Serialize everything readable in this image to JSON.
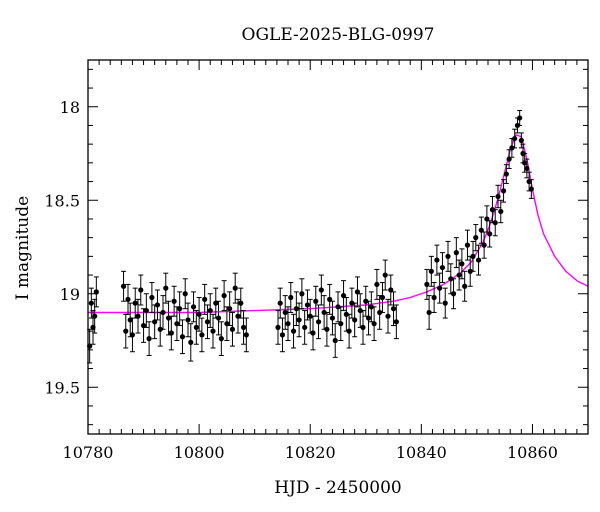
{
  "chart_data": {
    "type": "scatter",
    "title": "OGLE-2025-BLG-0997",
    "xlabel": "HJD - 2450000",
    "ylabel": "I magnitude",
    "xlim": [
      10780,
      10870
    ],
    "ylim": [
      19.75,
      17.75
    ],
    "y_inverted": true,
    "x_ticks": [
      10780,
      10800,
      10820,
      10840,
      10860
    ],
    "y_ticks": [
      18,
      18.5,
      19,
      19.5
    ],
    "x_tick_labels": [
      "10780",
      "10800",
      "10820",
      "10840",
      "10860"
    ],
    "y_tick_labels": [
      "18",
      "18.5",
      "19",
      "19.5"
    ],
    "grid": false,
    "legend": "none",
    "colors": {
      "points": "#000000",
      "model": "#ff00ff"
    },
    "series": [
      {
        "type": "scatter-errorbar",
        "points": [
          {
            "x": 10780.3,
            "y": 19.28,
            "err": 0.09
          },
          {
            "x": 10780.6,
            "y": 19.05,
            "err": 0.08
          },
          {
            "x": 10780.9,
            "y": 19.18,
            "err": 0.09
          },
          {
            "x": 10781.2,
            "y": 19.12,
            "err": 0.09
          },
          {
            "x": 10781.5,
            "y": 18.99,
            "err": 0.08
          },
          {
            "x": 10786.4,
            "y": 18.96,
            "err": 0.08
          },
          {
            "x": 10786.8,
            "y": 19.2,
            "err": 0.09
          },
          {
            "x": 10787.2,
            "y": 19.03,
            "err": 0.08
          },
          {
            "x": 10787.6,
            "y": 19.14,
            "err": 0.09
          },
          {
            "x": 10788.0,
            "y": 19.22,
            "err": 0.09
          },
          {
            "x": 10788.5,
            "y": 19.05,
            "err": 0.08
          },
          {
            "x": 10789.0,
            "y": 19.12,
            "err": 0.09
          },
          {
            "x": 10789.5,
            "y": 18.98,
            "err": 0.08
          },
          {
            "x": 10790.0,
            "y": 19.17,
            "err": 0.09
          },
          {
            "x": 10790.5,
            "y": 19.09,
            "err": 0.09
          },
          {
            "x": 10791.0,
            "y": 19.24,
            "err": 0.09
          },
          {
            "x": 10791.5,
            "y": 19.02,
            "err": 0.08
          },
          {
            "x": 10792.0,
            "y": 19.15,
            "err": 0.09
          },
          {
            "x": 10792.5,
            "y": 19.06,
            "err": 0.08
          },
          {
            "x": 10793.0,
            "y": 19.19,
            "err": 0.09
          },
          {
            "x": 10793.5,
            "y": 19.1,
            "err": 0.09
          },
          {
            "x": 10794.0,
            "y": 18.97,
            "err": 0.08
          },
          {
            "x": 10794.5,
            "y": 19.13,
            "err": 0.09
          },
          {
            "x": 10795.0,
            "y": 19.21,
            "err": 0.09
          },
          {
            "x": 10795.5,
            "y": 19.04,
            "err": 0.08
          },
          {
            "x": 10796.0,
            "y": 19.16,
            "err": 0.09
          },
          {
            "x": 10796.5,
            "y": 19.08,
            "err": 0.09
          },
          {
            "x": 10797.0,
            "y": 19.23,
            "err": 0.09
          },
          {
            "x": 10797.5,
            "y": 19.0,
            "err": 0.08
          },
          {
            "x": 10798.0,
            "y": 19.14,
            "err": 0.09
          },
          {
            "x": 10798.5,
            "y": 19.26,
            "err": 0.1
          },
          {
            "x": 10799.0,
            "y": 19.07,
            "err": 0.08
          },
          {
            "x": 10799.5,
            "y": 19.18,
            "err": 0.09
          },
          {
            "x": 10800.0,
            "y": 19.11,
            "err": 0.09
          },
          {
            "x": 10800.5,
            "y": 19.22,
            "err": 0.09
          },
          {
            "x": 10801.0,
            "y": 19.03,
            "err": 0.08
          },
          {
            "x": 10801.5,
            "y": 19.15,
            "err": 0.09
          },
          {
            "x": 10802.0,
            "y": 19.09,
            "err": 0.09
          },
          {
            "x": 10802.5,
            "y": 19.2,
            "err": 0.09
          },
          {
            "x": 10803.0,
            "y": 19.05,
            "err": 0.08
          },
          {
            "x": 10803.5,
            "y": 19.13,
            "err": 0.09
          },
          {
            "x": 10804.0,
            "y": 19.24,
            "err": 0.09
          },
          {
            "x": 10804.5,
            "y": 19.01,
            "err": 0.08
          },
          {
            "x": 10805.0,
            "y": 19.16,
            "err": 0.09
          },
          {
            "x": 10805.5,
            "y": 19.08,
            "err": 0.09
          },
          {
            "x": 10806.0,
            "y": 19.19,
            "err": 0.09
          },
          {
            "x": 10806.5,
            "y": 18.97,
            "err": 0.08
          },
          {
            "x": 10807.0,
            "y": 19.12,
            "err": 0.09
          },
          {
            "x": 10807.5,
            "y": 19.05,
            "err": 0.08
          },
          {
            "x": 10808.0,
            "y": 19.18,
            "err": 0.09
          },
          {
            "x": 10808.5,
            "y": 19.22,
            "err": 0.09
          },
          {
            "x": 10814.2,
            "y": 19.18,
            "err": 0.09
          },
          {
            "x": 10814.6,
            "y": 19.05,
            "err": 0.08
          },
          {
            "x": 10815.0,
            "y": 19.22,
            "err": 0.09
          },
          {
            "x": 10815.5,
            "y": 19.1,
            "err": 0.09
          },
          {
            "x": 10816.0,
            "y": 19.16,
            "err": 0.09
          },
          {
            "x": 10816.5,
            "y": 19.02,
            "err": 0.08
          },
          {
            "x": 10817.0,
            "y": 19.2,
            "err": 0.09
          },
          {
            "x": 10817.5,
            "y": 19.08,
            "err": 0.09
          },
          {
            "x": 10818.0,
            "y": 19.14,
            "err": 0.09
          },
          {
            "x": 10818.5,
            "y": 19.0,
            "err": 0.08
          },
          {
            "x": 10819.0,
            "y": 19.18,
            "err": 0.09
          },
          {
            "x": 10819.5,
            "y": 19.06,
            "err": 0.08
          },
          {
            "x": 10820.0,
            "y": 19.12,
            "err": 0.09
          },
          {
            "x": 10820.5,
            "y": 19.21,
            "err": 0.09
          },
          {
            "x": 10821.0,
            "y": 19.04,
            "err": 0.08
          },
          {
            "x": 10821.5,
            "y": 19.15,
            "err": 0.09
          },
          {
            "x": 10822.0,
            "y": 18.98,
            "err": 0.08
          },
          {
            "x": 10822.5,
            "y": 19.1,
            "err": 0.09
          },
          {
            "x": 10823.0,
            "y": 19.19,
            "err": 0.09
          },
          {
            "x": 10823.5,
            "y": 19.03,
            "err": 0.08
          },
          {
            "x": 10824.0,
            "y": 19.13,
            "err": 0.09
          },
          {
            "x": 10824.5,
            "y": 19.25,
            "err": 0.09
          },
          {
            "x": 10825.0,
            "y": 19.07,
            "err": 0.08
          },
          {
            "x": 10825.5,
            "y": 19.16,
            "err": 0.09
          },
          {
            "x": 10826.0,
            "y": 19.01,
            "err": 0.08
          },
          {
            "x": 10826.5,
            "y": 19.11,
            "err": 0.09
          },
          {
            "x": 10827.0,
            "y": 19.2,
            "err": 0.09
          },
          {
            "x": 10827.5,
            "y": 19.05,
            "err": 0.08
          },
          {
            "x": 10828.0,
            "y": 19.14,
            "err": 0.09
          },
          {
            "x": 10828.5,
            "y": 18.99,
            "err": 0.08
          },
          {
            "x": 10829.0,
            "y": 19.09,
            "err": 0.09
          },
          {
            "x": 10829.5,
            "y": 19.18,
            "err": 0.09
          },
          {
            "x": 10830.0,
            "y": 19.04,
            "err": 0.08
          },
          {
            "x": 10830.5,
            "y": 19.13,
            "err": 0.09
          },
          {
            "x": 10831.0,
            "y": 19.07,
            "err": 0.08
          },
          {
            "x": 10831.5,
            "y": 19.16,
            "err": 0.09
          },
          {
            "x": 10832.0,
            "y": 18.95,
            "err": 0.08
          },
          {
            "x": 10832.5,
            "y": 19.1,
            "err": 0.09
          },
          {
            "x": 10833.0,
            "y": 19.02,
            "err": 0.08
          },
          {
            "x": 10833.5,
            "y": 18.9,
            "err": 0.08
          },
          {
            "x": 10834.0,
            "y": 19.12,
            "err": 0.09
          },
          {
            "x": 10834.5,
            "y": 18.98,
            "err": 0.08
          },
          {
            "x": 10835.0,
            "y": 19.08,
            "err": 0.09
          },
          {
            "x": 10835.5,
            "y": 19.15,
            "err": 0.09
          },
          {
            "x": 10841.0,
            "y": 18.95,
            "err": 0.08
          },
          {
            "x": 10841.4,
            "y": 19.1,
            "err": 0.09
          },
          {
            "x": 10841.8,
            "y": 18.88,
            "err": 0.08
          },
          {
            "x": 10842.3,
            "y": 19.02,
            "err": 0.08
          },
          {
            "x": 10842.8,
            "y": 18.82,
            "err": 0.08
          },
          {
            "x": 10843.3,
            "y": 18.97,
            "err": 0.08
          },
          {
            "x": 10843.8,
            "y": 18.86,
            "err": 0.08
          },
          {
            "x": 10844.3,
            "y": 19.05,
            "err": 0.08
          },
          {
            "x": 10844.8,
            "y": 18.8,
            "err": 0.08
          },
          {
            "x": 10845.3,
            "y": 18.92,
            "err": 0.08
          },
          {
            "x": 10845.8,
            "y": 19.0,
            "err": 0.08
          },
          {
            "x": 10846.3,
            "y": 18.78,
            "err": 0.08
          },
          {
            "x": 10846.8,
            "y": 18.9,
            "err": 0.08
          },
          {
            "x": 10847.3,
            "y": 18.84,
            "err": 0.08
          },
          {
            "x": 10847.8,
            "y": 18.96,
            "err": 0.08
          },
          {
            "x": 10848.3,
            "y": 18.74,
            "err": 0.08
          },
          {
            "x": 10848.8,
            "y": 18.88,
            "err": 0.08
          },
          {
            "x": 10849.3,
            "y": 18.8,
            "err": 0.08
          },
          {
            "x": 10849.8,
            "y": 18.7,
            "err": 0.07
          },
          {
            "x": 10850.3,
            "y": 18.82,
            "err": 0.08
          },
          {
            "x": 10850.8,
            "y": 18.66,
            "err": 0.07
          },
          {
            "x": 10851.3,
            "y": 18.74,
            "err": 0.07
          },
          {
            "x": 10851.8,
            "y": 18.6,
            "err": 0.07
          },
          {
            "x": 10852.3,
            "y": 18.68,
            "err": 0.07
          },
          {
            "x": 10852.8,
            "y": 18.55,
            "err": 0.07
          },
          {
            "x": 10853.3,
            "y": 18.62,
            "err": 0.07
          },
          {
            "x": 10853.8,
            "y": 18.48,
            "err": 0.06
          },
          {
            "x": 10854.3,
            "y": 18.56,
            "err": 0.06
          },
          {
            "x": 10854.8,
            "y": 18.45,
            "err": 0.06
          },
          {
            "x": 10855.3,
            "y": 18.36,
            "err": 0.05
          },
          {
            "x": 10855.8,
            "y": 18.28,
            "err": 0.05
          },
          {
            "x": 10856.3,
            "y": 18.22,
            "err": 0.05
          },
          {
            "x": 10856.8,
            "y": 18.17,
            "err": 0.05
          },
          {
            "x": 10857.3,
            "y": 18.1,
            "err": 0.04
          },
          {
            "x": 10857.7,
            "y": 18.06,
            "err": 0.04
          },
          {
            "x": 10858.0,
            "y": 18.18,
            "err": 0.04
          },
          {
            "x": 10858.3,
            "y": 18.25,
            "err": 0.05
          },
          {
            "x": 10858.6,
            "y": 18.3,
            "err": 0.05
          },
          {
            "x": 10859.0,
            "y": 18.33,
            "err": 0.05
          },
          {
            "x": 10859.4,
            "y": 18.4,
            "err": 0.05
          },
          {
            "x": 10859.8,
            "y": 18.44,
            "err": 0.05
          }
        ]
      },
      {
        "type": "line",
        "x": [
          10780,
          10790,
          10800,
          10810,
          10820,
          10825,
          10830,
          10835,
          10838,
          10841,
          10844,
          10847,
          10849,
          10851,
          10852,
          10853,
          10854,
          10855,
          10856,
          10857,
          10858,
          10859,
          10860,
          10861,
          10862,
          10864,
          10866,
          10868,
          10870
        ],
        "y": [
          19.1,
          19.1,
          19.1,
          19.09,
          19.08,
          19.07,
          19.06,
          19.04,
          19.02,
          18.99,
          18.95,
          18.89,
          18.83,
          18.73,
          18.66,
          18.57,
          18.47,
          18.35,
          18.23,
          18.15,
          18.16,
          18.28,
          18.44,
          18.58,
          18.68,
          18.8,
          18.88,
          18.93,
          18.96
        ]
      }
    ]
  }
}
